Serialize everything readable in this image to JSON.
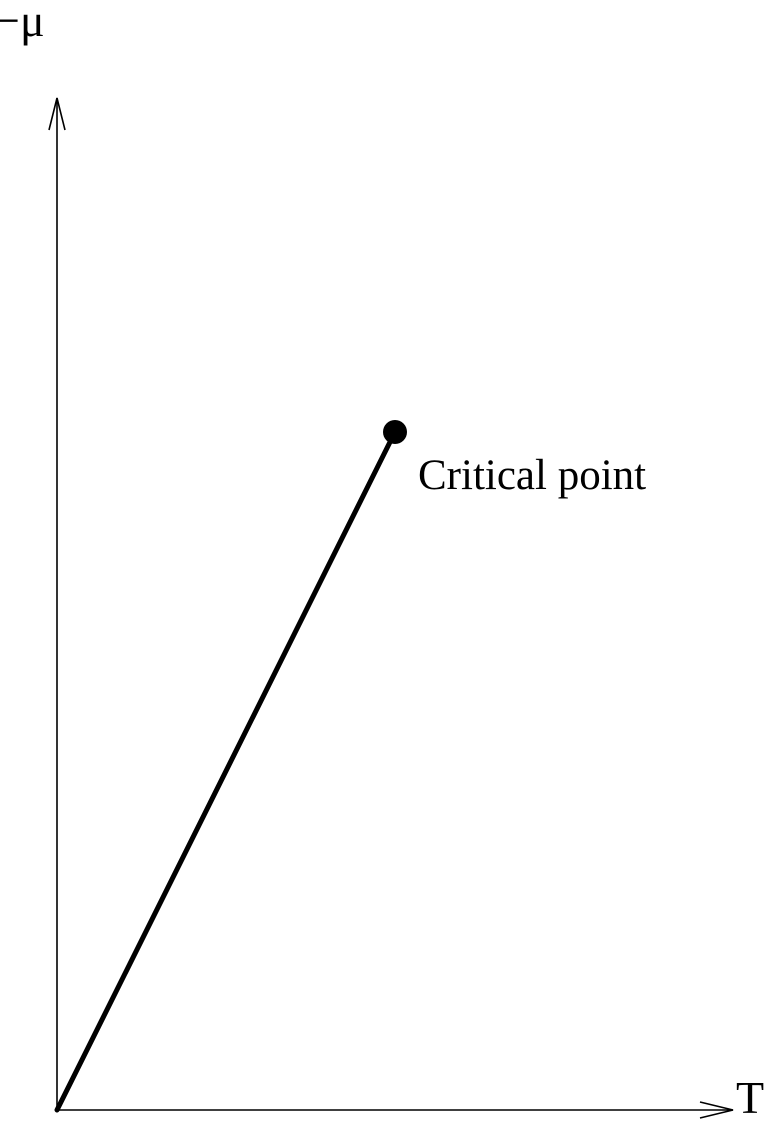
{
  "diagram": {
    "y_axis_label": "−μ",
    "x_axis_label": "T",
    "critical_point_label": "Critical point"
  },
  "colors": {
    "ink": "#000000",
    "background": "#ffffff"
  }
}
